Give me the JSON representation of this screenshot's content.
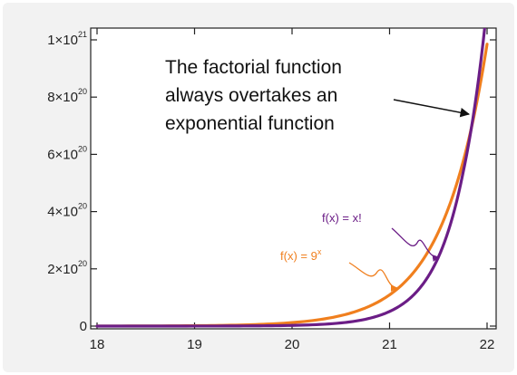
{
  "chart_data": {
    "type": "line",
    "title": "",
    "xlabel": "",
    "ylabel": "",
    "xlim": [
      18,
      22
    ],
    "ylim": [
      0,
      1e+21
    ],
    "grid": false,
    "x_ticks": [
      {
        "value": 18,
        "label": "18"
      },
      {
        "value": 19,
        "label": "19"
      },
      {
        "value": 20,
        "label": "20"
      },
      {
        "value": 21,
        "label": "21"
      },
      {
        "value": 22,
        "label": "22"
      }
    ],
    "y_ticks": [
      {
        "value": 0,
        "mantissa": "0",
        "exp": ""
      },
      {
        "value": 2e+20,
        "mantissa": "2×10",
        "exp": "20"
      },
      {
        "value": 4e+20,
        "mantissa": "4×10",
        "exp": "20"
      },
      {
        "value": 6e+20,
        "mantissa": "6×10",
        "exp": "20"
      },
      {
        "value": 8e+20,
        "mantissa": "8×10",
        "exp": "20"
      },
      {
        "value": 1e+21,
        "mantissa": "1×10",
        "exp": "21"
      }
    ],
    "series": [
      {
        "name": "f(x) = 9^x",
        "label_base": "f(x) = 9",
        "label_exp": "x",
        "color": "#f07f1e",
        "x": [
          18,
          19,
          19.5,
          20,
          20.5,
          21,
          21.25,
          21.5,
          21.75,
          22
        ],
        "y": [
          1.5e+17,
          1.35e+18,
          4.05e+18,
          1.22e+19,
          3.65e+19,
          1.09e+20,
          1.89e+20,
          3.28e+20,
          5.69e+20,
          9.85e+20
        ]
      },
      {
        "name": "f(x) = x!",
        "label_base": "f(x) = x!",
        "label_exp": "",
        "color": "#6b1d86",
        "x": [
          18,
          19,
          19.5,
          20,
          20.5,
          21,
          21.25,
          21.5,
          21.75,
          22
        ],
        "y": [
          6400000000000000.0,
          1.2e+17,
          5.5e+17,
          2.4e+18,
          1.1e+19,
          5.1e+19,
          1.1e+20,
          2.4e+20,
          5.3e+20,
          1.12e+21
        ]
      }
    ],
    "annotation": {
      "lines": [
        "The factorial function",
        "always overtakes an",
        "exponential function"
      ]
    }
  }
}
